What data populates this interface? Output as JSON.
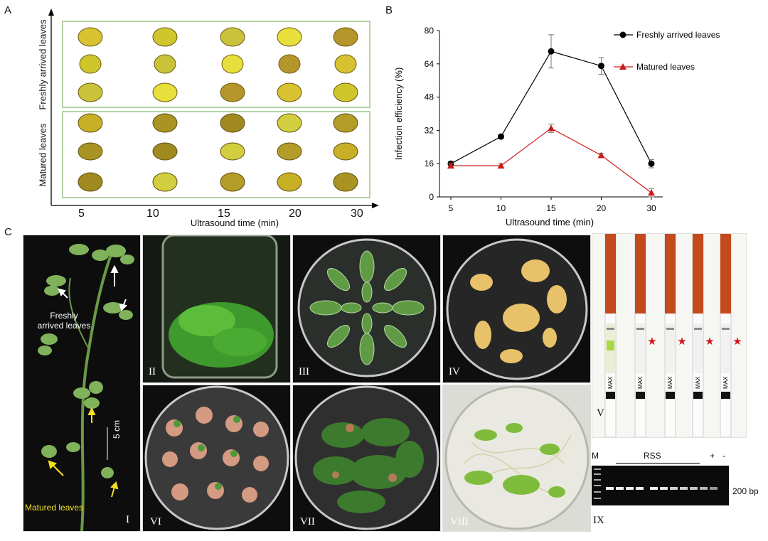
{
  "panels": {
    "A": "A",
    "B": "B",
    "C": "C"
  },
  "panel_a": {
    "y_label_top": "Freshly arrived leaves",
    "y_label_bottom": "Matured leaves",
    "x_label": "Ultrasound time (min)",
    "x_ticks": [
      "5",
      "10",
      "15",
      "20",
      "30"
    ]
  },
  "chart_data": {
    "type": "line",
    "x": [
      "5",
      "10",
      "15",
      "20",
      "30"
    ],
    "xlabel": "Ultrasound time (min)",
    "ylabel": "Infection efficiency (%)",
    "ylim": [
      0,
      80
    ],
    "yticks": [
      0,
      16,
      32,
      48,
      64,
      80
    ],
    "legend_position": "top-right",
    "series": [
      {
        "name": "Freshly arrived leaves",
        "color": "#000000",
        "marker": "circle",
        "values": [
          16,
          29,
          70,
          63,
          16
        ],
        "errors": [
          1,
          1,
          8,
          4,
          2
        ]
      },
      {
        "name": "Matured leaves",
        "color": "#cc1a1a",
        "marker": "triangle",
        "values": [
          15,
          15,
          33,
          20,
          2
        ],
        "errors": [
          1,
          1,
          2,
          1,
          2
        ]
      }
    ]
  },
  "panel_c": {
    "label_freshly": "Freshly\narrived leaves",
    "label_matured": "Matured leaves",
    "scale": "5 cm",
    "numerals": [
      "I",
      "II",
      "III",
      "IV",
      "V",
      "VI",
      "VII",
      "VIII",
      "IX"
    ]
  },
  "strips": {
    "text": "MAX"
  },
  "gel": {
    "marker": "M",
    "group": "RSS",
    "plus": "+",
    "minus": "-",
    "band_size": "200 bp"
  }
}
